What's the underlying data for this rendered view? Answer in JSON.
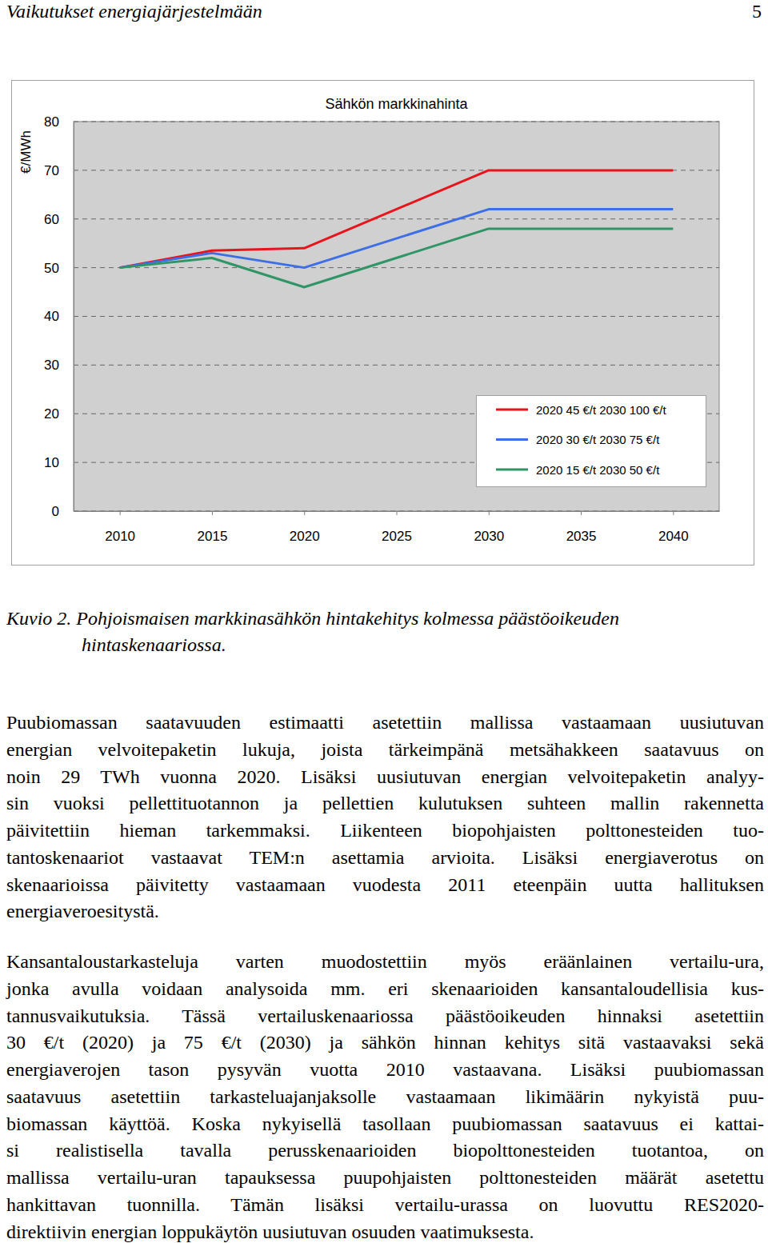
{
  "header": {
    "title": "Vaikutukset energiajärjestelmään",
    "page": "5"
  },
  "chart_data": {
    "type": "line",
    "title": "Sähkön markkinahinta",
    "y_label": "€/MWh",
    "x": [
      2010,
      2015,
      2020,
      2030,
      2040
    ],
    "xlim": [
      2007.5,
      2042.5
    ],
    "xticks": [
      2010,
      2015,
      2020,
      2025,
      2030,
      2035,
      2040
    ],
    "ylim": [
      0,
      80
    ],
    "yticks": [
      0,
      10,
      20,
      30,
      40,
      50,
      60,
      70,
      80
    ],
    "grid": true,
    "legend": "lower-right",
    "series": [
      {
        "name": "2020 45 €/t 2030 100 €/t",
        "color": "#e8141c",
        "values": [
          50,
          53.5,
          54,
          70,
          70
        ]
      },
      {
        "name": "2020 30 €/t 2030 75 €/t",
        "color": "#3d6ee6",
        "values": [
          50,
          53,
          50,
          62,
          62
        ]
      },
      {
        "name": "2020 15 €/t 2030 50 €/t",
        "color": "#2f9566",
        "values": [
          50,
          52,
          46,
          58,
          58
        ]
      }
    ]
  },
  "caption": [
    "Kuvio 2. Pohjoismaisen markkinasähkön hintakehitys kolmessa päästöoikeuden",
    "hintaskenaariossa."
  ],
  "paragraphs": [
    [
      "Puubiomassan saatavuuden estimaatti asetettiin mallissa vastaamaan uusiutuvan",
      "energian velvoitepaketin lukuja, joista tärkeimpänä metsähakkeen saatavuus on",
      "noin 29 TWh vuonna 2020. Lisäksi uusiutuvan energian velvoitepaketin analyy-",
      "sin vuoksi pellettituotannon ja pellettien kulutuksen suhteen mallin rakennetta",
      "päivitettiin hieman tarkemmaksi. Liikenteen biopohjaisten polttonesteiden tuo-",
      "tantoskenaariot vastaavat TEM:n asettamia arvioita. Lisäksi energiaverotus on",
      "skenaarioissa päivitetty vastaamaan vuodesta 2011 eteenpäin uutta hallituksen",
      "energiaveroesitystä."
    ],
    [
      "Kansantaloustarkasteluja varten muodostettiin myös eräänlainen vertailu-ura,",
      "jonka avulla voidaan analysoida mm. eri skenaarioiden kansantaloudellisia kus-",
      "tannusvaikutuksia. Tässä vertailuskenaariossa päästöoikeuden hinnaksi asetettiin",
      "30 €/t (2020) ja 75 €/t (2030) ja sähkön hinnan kehitys sitä vastaavaksi sekä",
      "energiaverojen tason pysyvän vuotta 2010 vastaavana. Lisäksi puubiomassan",
      "saatavuus asetettiin tarkasteluajanjaksolle vastaamaan likimäärin nykyistä puu-",
      "biomassan käyttöä. Koska nykyisellä tasollaan puubiomassan saatavuus ei kattai-",
      "si realistisella tavalla perusskenaarioiden biopolttonesteiden tuotantoa, on",
      "mallissa vertailu-uran tapauksessa puupohjaisten polttonesteiden määrät asetettu",
      "hankittavan tuonnilla. Tämän lisäksi vertailu-urassa on luovuttu RES2020-",
      "direktiivin energian loppukäytön uusiutuvan osuuden vaatimuksesta."
    ]
  ]
}
